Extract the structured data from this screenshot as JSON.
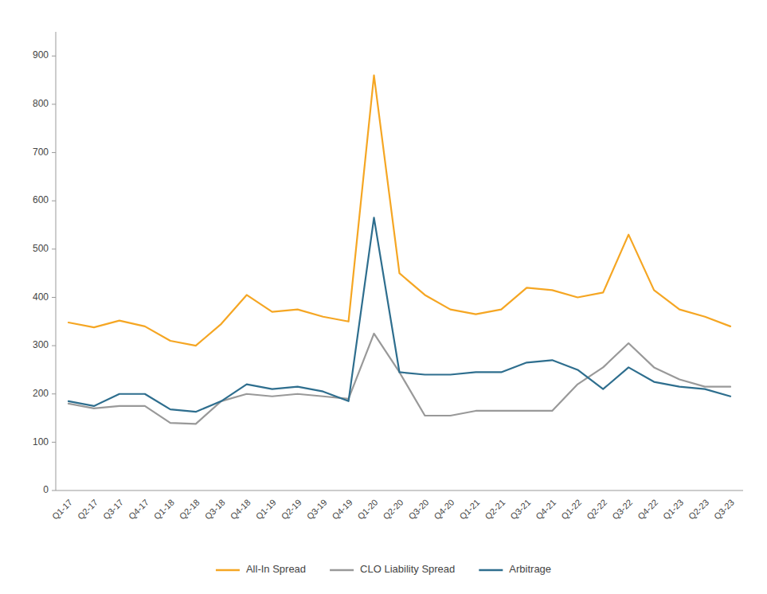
{
  "chart_data": {
    "type": "line",
    "categories": [
      "Q1-17",
      "Q2-17",
      "Q3-17",
      "Q4-17",
      "Q1-18",
      "Q2-18",
      "Q3-18",
      "Q4-18",
      "Q1-19",
      "Q2-19",
      "Q3-19",
      "Q4-19",
      "Q1-20",
      "Q2-20",
      "Q3-20",
      "Q4-20",
      "Q1-21",
      "Q2-21",
      "Q3-21",
      "Q4-21",
      "Q1-22",
      "Q2-22",
      "Q3-22",
      "Q4-22",
      "Q1-23",
      "Q2-23",
      "Q3-23"
    ],
    "series": [
      {
        "name": "All-In Spread",
        "color": "#F5A623",
        "values": [
          348,
          338,
          352,
          340,
          310,
          300,
          345,
          405,
          370,
          375,
          360,
          350,
          860,
          450,
          405,
          375,
          365,
          375,
          420,
          415,
          400,
          410,
          530,
          415,
          375,
          360,
          340
        ]
      },
      {
        "name": "CLO Liability Spread",
        "color": "#999999",
        "values": [
          180,
          170,
          175,
          175,
          140,
          138,
          185,
          200,
          195,
          200,
          195,
          190,
          325,
          245,
          155,
          155,
          165,
          165,
          165,
          165,
          220,
          255,
          305,
          255,
          230,
          215,
          215
        ]
      },
      {
        "name": "Arbitrage",
        "color": "#2E6E8E",
        "values": [
          185,
          175,
          200,
          200,
          168,
          163,
          185,
          220,
          210,
          215,
          205,
          185,
          565,
          245,
          240,
          240,
          245,
          245,
          265,
          270,
          250,
          210,
          255,
          225,
          215,
          210,
          195
        ]
      }
    ],
    "ylim": [
      0,
      950
    ],
    "yticks": [
      0,
      100,
      200,
      300,
      400,
      500,
      600,
      700,
      800,
      900
    ],
    "grid": false,
    "legend": "bottom"
  }
}
